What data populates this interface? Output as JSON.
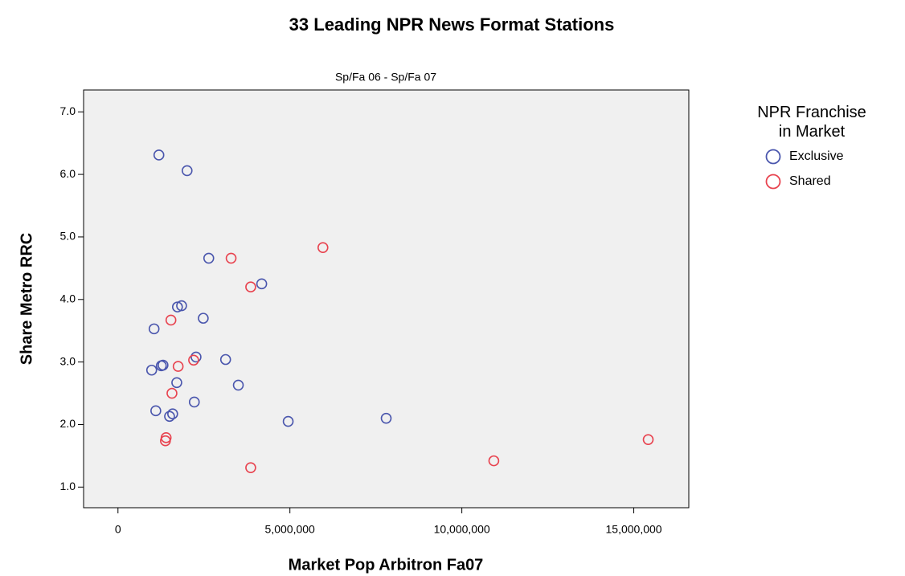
{
  "chart_data": {
    "type": "scatter",
    "title": "33 Leading NPR News Format Stations",
    "subtitle": "Sp/Fa 06 - Sp/Fa 07",
    "x_label": "Market Pop Arbitron Fa07",
    "y_label": "Share Metro RRC",
    "legend_title": "NPR Franchise in Market",
    "xlim": [
      -1000000,
      16600000
    ],
    "ylim": [
      0.67,
      7.35
    ],
    "xticks": [
      0,
      {
        "value": 5000000,
        "label": "5,000,000"
      },
      {
        "value": 10000000,
        "label": "10,000,000"
      },
      {
        "value": 15000000,
        "label": "15,000,000"
      }
    ],
    "yticks": [
      {
        "value": 1,
        "label": "1.0"
      },
      {
        "value": 2,
        "label": "2.0"
      },
      {
        "value": 3,
        "label": "3.0"
      },
      {
        "value": 4,
        "label": "4.0"
      },
      {
        "value": 5,
        "label": "5.0"
      },
      {
        "value": 6,
        "label": "6.0"
      },
      {
        "value": 7,
        "label": "7.0"
      }
    ],
    "series": [
      {
        "name": "Exclusive",
        "color": "#4a56ad",
        "x": [
          1190000,
          2010000,
          2640000,
          4180000,
          1850000,
          1730000,
          2480000,
          1050000,
          2270000,
          3130000,
          1310000,
          1260000,
          980000,
          1710000,
          3500000,
          2220000,
          1100000,
          1590000,
          1500000,
          4950000,
          7800000
        ],
        "values": [
          6.31,
          6.06,
          4.66,
          4.25,
          3.9,
          3.88,
          3.7,
          3.53,
          3.08,
          3.04,
          2.95,
          2.94,
          2.87,
          2.67,
          2.63,
          2.36,
          2.22,
          2.17,
          2.13,
          2.05,
          2.1
        ]
      },
      {
        "name": "Shared",
        "color": "#e8434f",
        "x": [
          5960000,
          3290000,
          3860000,
          1540000,
          2200000,
          1750000,
          1570000,
          1400000,
          1380000,
          3860000,
          10930000,
          15420000
        ],
        "values": [
          4.83,
          4.66,
          4.2,
          3.67,
          3.03,
          2.93,
          2.5,
          1.79,
          1.74,
          1.31,
          1.42,
          1.76
        ]
      }
    ]
  }
}
